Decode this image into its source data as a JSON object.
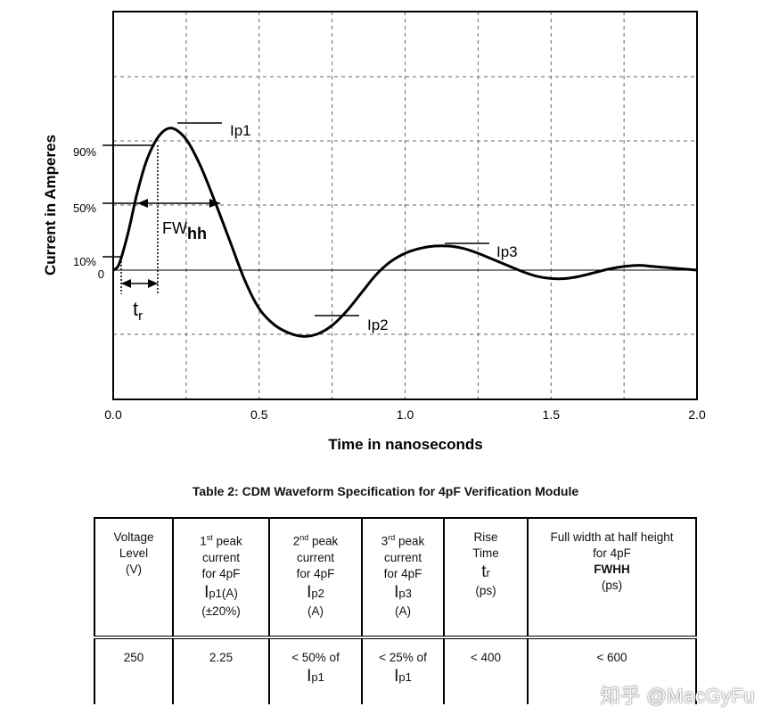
{
  "chart_data": {
    "type": "line",
    "xlabel": "Time in nanoseconds",
    "ylabel": "Current in Amperes",
    "xlim": [
      0,
      2.0
    ],
    "xticks": [
      "0.0",
      "0.5",
      "1.0",
      "1.5",
      "2.0"
    ],
    "grid": true,
    "y_markers": [
      "90%",
      "50%",
      "10%",
      "0"
    ],
    "annotations": [
      "Ip1",
      "Ip2",
      "Ip3",
      "FW",
      "hh",
      "t",
      "r"
    ],
    "series": [
      {
        "name": "CDM waveform",
        "x": [
          0.0,
          0.02,
          0.05,
          0.08,
          0.11,
          0.14,
          0.17,
          0.2,
          0.23,
          0.26,
          0.3,
          0.35,
          0.4,
          0.45,
          0.5,
          0.55,
          0.6,
          0.65,
          0.7,
          0.75,
          0.8,
          0.85,
          0.9,
          0.95,
          1.0,
          1.05,
          1.1,
          1.15,
          1.2,
          1.25,
          1.3,
          1.35,
          1.4,
          1.45,
          1.5,
          1.55,
          1.6,
          1.65,
          1.7,
          1.75,
          1.8,
          1.85,
          1.9,
          1.95,
          2.0
        ],
        "y": [
          0.0,
          0.05,
          0.3,
          0.62,
          0.88,
          1.05,
          1.15,
          1.18,
          1.14,
          1.05,
          0.86,
          0.56,
          0.24,
          -0.08,
          -0.32,
          -0.45,
          -0.52,
          -0.55,
          -0.53,
          -0.46,
          -0.34,
          -0.19,
          -0.04,
          0.07,
          0.14,
          0.18,
          0.2,
          0.2,
          0.18,
          0.14,
          0.09,
          0.04,
          -0.01,
          -0.05,
          -0.07,
          -0.07,
          -0.05,
          -0.02,
          0.01,
          0.03,
          0.04,
          0.03,
          0.02,
          0.01,
          0.0
        ]
      }
    ]
  },
  "table": {
    "title": "Table 2:  CDM Waveform Specification for 4pF Verification Module",
    "headers": {
      "voltage": [
        "Voltage",
        "Level",
        "(V)"
      ],
      "ip1": {
        "ord": "1",
        "sup": "st",
        "rest": " peak",
        "lines": [
          "current",
          "for 4pF"
        ],
        "sym": "I",
        "symsub": "p1",
        "unit": "(A)",
        "tol": "(±20%)"
      },
      "ip2": {
        "ord": "2",
        "sup": "nd",
        "rest": " peak",
        "lines": [
          "current",
          "for 4pF"
        ],
        "sym": "I",
        "symsub": "p2",
        "unit": "(A)"
      },
      "ip3": {
        "ord": "3",
        "sup": "rd",
        "rest": " peak",
        "lines": [
          "current",
          "for 4pF"
        ],
        "sym": "I",
        "symsub": "p3",
        "unit": "(A)"
      },
      "rise": {
        "lines": [
          "Rise",
          "Time"
        ],
        "sym": "t",
        "symsub": "r",
        "unit": "(ps)"
      },
      "fwhh": {
        "lines": [
          "Full width at half height",
          "for 4pF"
        ],
        "bold": "FWHH",
        "unit": "(ps)"
      }
    },
    "row": {
      "voltage": "250",
      "ip1": "2.25",
      "ip2_text": "< 50% of",
      "ip3_text": "< 25% of",
      "ref_sym": "I",
      "ref_sub": "p1",
      "rise": "< 400",
      "fwhh": "< 600"
    }
  },
  "watermark": "知乎 @MacGyFu"
}
